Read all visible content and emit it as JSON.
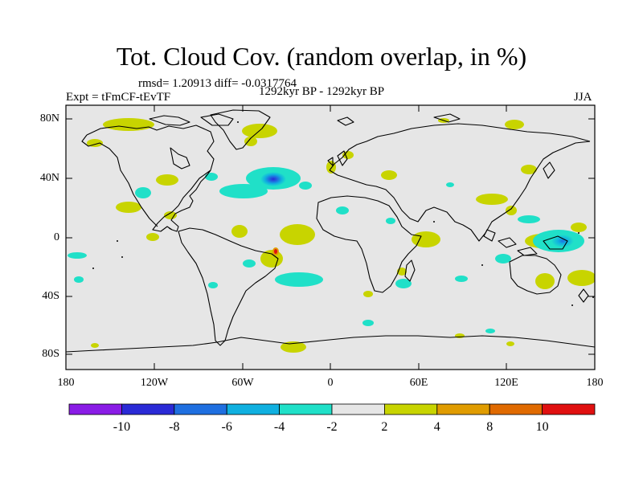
{
  "title": "Tot. Cloud Cov. (random overlap, in %)",
  "stats": "rmsd= 1.20913  diff= -0.0317764",
  "experiment": "Expt = tFmCF-tEvTF",
  "period": "1292kyr BP - 1292kyr BP",
  "season": "JJA",
  "lat_ticks": [
    "80N",
    "40N",
    "0",
    "40S",
    "80S"
  ],
  "lon_ticks": [
    "180",
    "120W",
    "60W",
    "0",
    "60E",
    "120E",
    "180"
  ],
  "colorbar": {
    "labels": [
      "-10",
      "-8",
      "-6",
      "-4",
      "-2",
      "2",
      "4",
      "8",
      "10"
    ],
    "colors": [
      "#8a1ce6",
      "#2a2ad6",
      "#1f6fe0",
      "#10b0e0",
      "#20e0c8",
      "#e6e6e6",
      "#c8d400",
      "#e09c00",
      "#e06a00",
      "#e01010"
    ]
  },
  "colors": {
    "ocean_bg": "#e6e6e6",
    "positive_small": "#c8d400",
    "negative_small": "#20e0c8",
    "negative_mid": "#10b0e0",
    "negative_strong": "#1f6fe0",
    "positive_mid": "#e09c00",
    "positive_strong": "#e01010"
  }
}
